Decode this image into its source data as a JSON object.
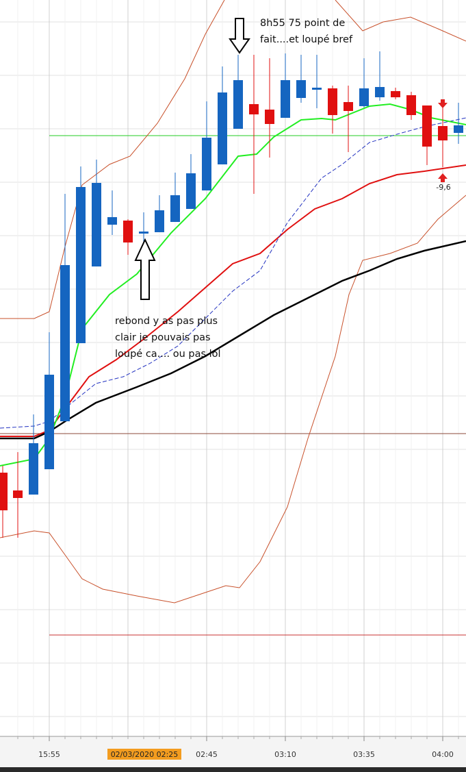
{
  "annotations": {
    "top": [
      "8h55 75 point de",
      "fait....et loupé bref"
    ],
    "middle": [
      "rebond y as pas plus",
      "clair je pouvais pas",
      "loupé ca.... ou pas lol"
    ],
    "marker": "-9,6"
  },
  "x_axis": {
    "labels": [
      "15:55",
      "02:45",
      "03:10",
      "03:35",
      "04:00"
    ],
    "cursor": "02/03/2020 02:25"
  }
}
